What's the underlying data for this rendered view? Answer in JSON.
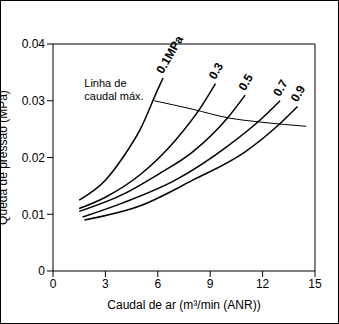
{
  "chart_data": {
    "type": "line",
    "x_label": "Caudal de ar (m³/min (ANR))",
    "y_label": "Queda de pressão (MPa)",
    "xlim": [
      0,
      15
    ],
    "xticks": [
      0,
      3,
      6,
      9,
      12,
      15
    ],
    "ylim": [
      0,
      0.04
    ],
    "yticks": [
      0,
      0.01,
      0.02,
      0.03,
      0.04
    ],
    "grid": false,
    "series": [
      {
        "name": "0.1MPa",
        "color": "#000000",
        "x": [
          1.5,
          3,
          4,
          5,
          6,
          6.3
        ],
        "values": [
          0.0125,
          0.016,
          0.02,
          0.025,
          0.032,
          0.034
        ]
      },
      {
        "name": "0.3",
        "color": "#000000",
        "x": [
          1.5,
          3,
          5,
          7,
          8.5,
          9.3
        ],
        "values": [
          0.011,
          0.013,
          0.017,
          0.023,
          0.029,
          0.033
        ]
      },
      {
        "name": "0.5",
        "color": "#000000",
        "x": [
          1.5,
          4,
          6,
          8,
          10,
          11
        ],
        "values": [
          0.0105,
          0.0135,
          0.017,
          0.021,
          0.027,
          0.031
        ]
      },
      {
        "name": "0.7",
        "color": "#000000",
        "x": [
          1.7,
          4,
          7,
          10,
          12,
          13
        ],
        "values": [
          0.0095,
          0.012,
          0.016,
          0.022,
          0.027,
          0.03
        ]
      },
      {
        "name": "0.9",
        "color": "#000000",
        "x": [
          1.8,
          5,
          8,
          11,
          13,
          14
        ],
        "values": [
          0.009,
          0.0115,
          0.016,
          0.021,
          0.026,
          0.029
        ]
      },
      {
        "name": "Linha de caudal máx.",
        "color": "#000000",
        "x": [
          5.8,
          8,
          10,
          12,
          14.5
        ],
        "values": [
          0.03,
          0.0285,
          0.027,
          0.0262,
          0.0255
        ]
      }
    ]
  }
}
